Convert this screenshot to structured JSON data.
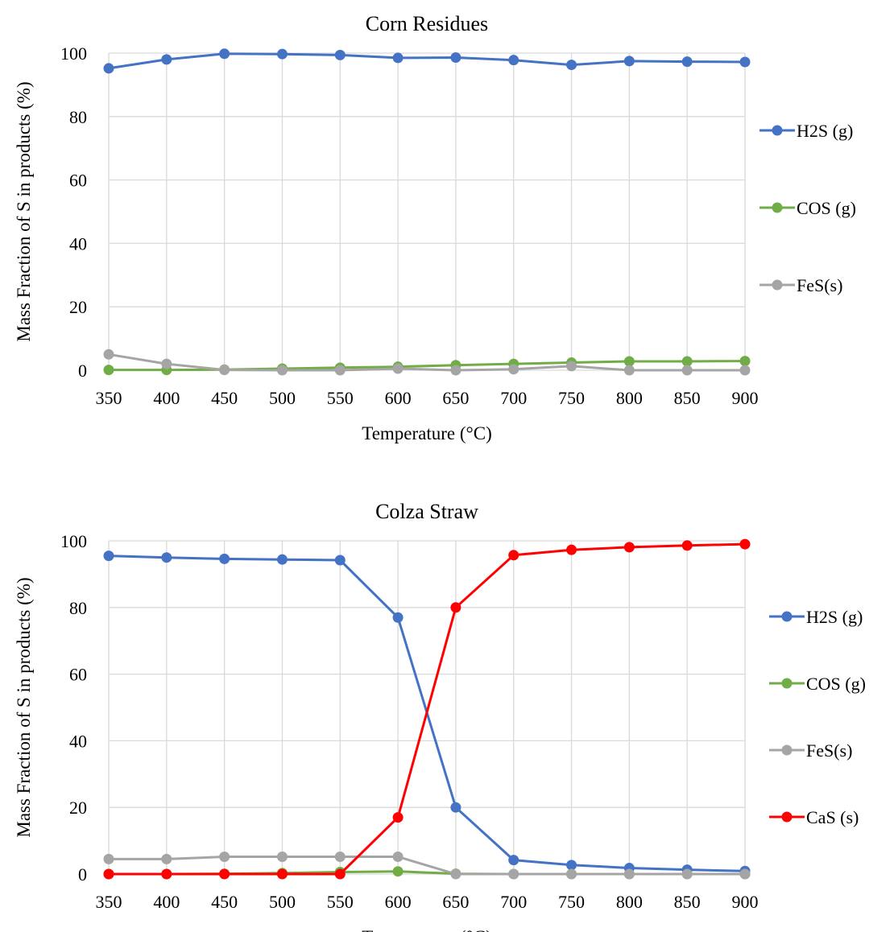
{
  "chart_data": [
    {
      "type": "line",
      "title": "Corn Residues",
      "xlabel": "Temperature (°C)",
      "ylabel": "Mass Fraction of S in products (%)",
      "x": [
        350,
        400,
        450,
        500,
        550,
        600,
        650,
        700,
        750,
        800,
        850,
        900
      ],
      "xticks": [
        "350",
        "400",
        "450",
        "500",
        "550",
        "600",
        "650",
        "700",
        "750",
        "800",
        "850",
        "900"
      ],
      "ylim": [
        0,
        100
      ],
      "yticks": [
        "0",
        "20",
        "40",
        "60",
        "80",
        "100"
      ],
      "grid": true,
      "legend_position": "right",
      "series": [
        {
          "name": "H2S (g)",
          "color": "#4472c4",
          "values": [
            95.2,
            98,
            99.8,
            99.7,
            99.4,
            98.5,
            98.6,
            97.8,
            96.3,
            97.5,
            97.3,
            97.2
          ]
        },
        {
          "name": "COS (g)",
          "color": "#70ad47",
          "values": [
            0.1,
            0.1,
            0.2,
            0.5,
            0.8,
            1.1,
            1.6,
            2.0,
            2.4,
            2.8,
            2.8,
            2.9
          ]
        },
        {
          "name": "FeS(s)",
          "color": "#a5a5a5",
          "values": [
            5.0,
            2.0,
            0.1,
            0.0,
            0.0,
            0.5,
            0.0,
            0.3,
            1.3,
            0.0,
            0.0,
            0.0
          ]
        }
      ]
    },
    {
      "type": "line",
      "title": "Colza Straw",
      "xlabel": "Temperature (°C)",
      "ylabel": "Mass Fraction of S in products (%)",
      "x": [
        350,
        400,
        450,
        500,
        550,
        600,
        650,
        700,
        750,
        800,
        850,
        900
      ],
      "xticks": [
        "350",
        "400",
        "450",
        "500",
        "550",
        "600",
        "650",
        "700",
        "750",
        "800",
        "850",
        "900"
      ],
      "ylim": [
        0,
        100
      ],
      "yticks": [
        "0",
        "20",
        "40",
        "60",
        "80",
        "100"
      ],
      "grid": true,
      "legend_position": "right",
      "series": [
        {
          "name": "H2S (g)",
          "color": "#4472c4",
          "values": [
            95.5,
            95.0,
            94.6,
            94.4,
            94.2,
            77.0,
            20.0,
            4.2,
            2.7,
            1.8,
            1.3,
            0.9
          ]
        },
        {
          "name": "COS (g)",
          "color": "#70ad47",
          "values": [
            0.0,
            0.0,
            0.1,
            0.3,
            0.6,
            0.8,
            0.1,
            0.0,
            0.0,
            0.0,
            0.0,
            0.0
          ]
        },
        {
          "name": "FeS(s)",
          "color": "#a5a5a5",
          "values": [
            4.5,
            4.5,
            5.2,
            5.2,
            5.2,
            5.2,
            0.0,
            0.0,
            0.0,
            0.0,
            0.0,
            0.0
          ]
        },
        {
          "name": "CaS (s)",
          "color": "#ff0000",
          "values": [
            0.0,
            0.0,
            0.0,
            0.0,
            0.0,
            17.0,
            80.0,
            95.7,
            97.3,
            98.1,
            98.6,
            99.0
          ]
        }
      ]
    }
  ]
}
